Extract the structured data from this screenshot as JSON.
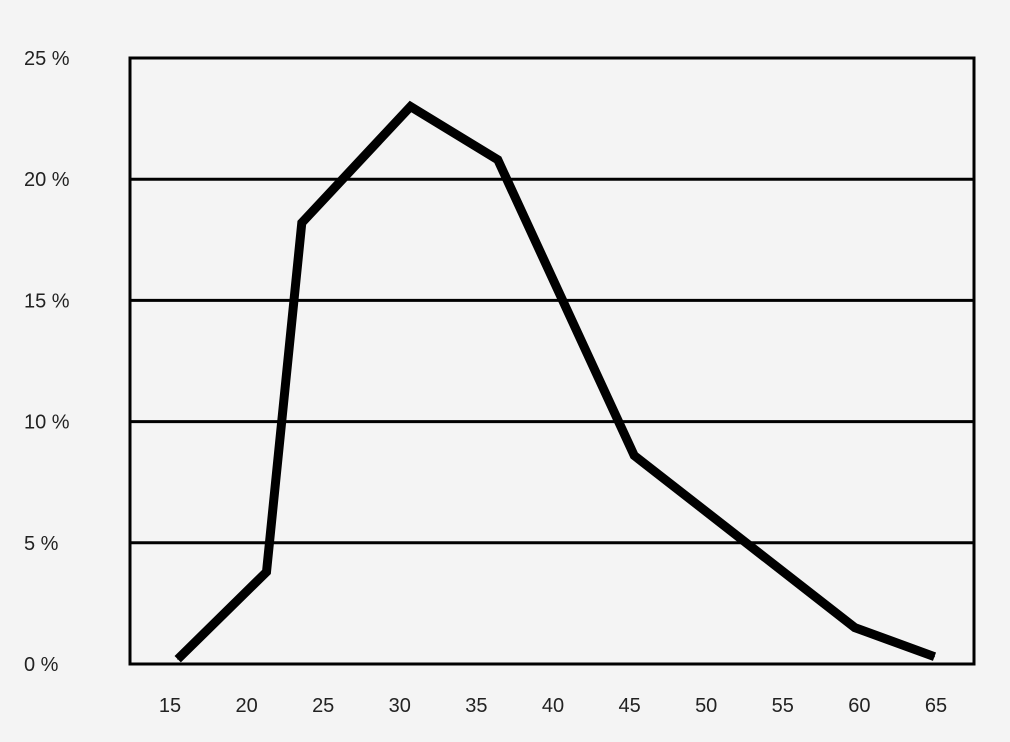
{
  "chart_data": {
    "type": "line",
    "title": "",
    "xlabel": "",
    "ylabel": "",
    "x_ticks": [
      "15",
      "20",
      "25",
      "30",
      "35",
      "40",
      "45",
      "50",
      "55",
      "60",
      "65"
    ],
    "y_ticks": [
      "0 %",
      "5 %",
      "10 %",
      "15 %",
      "20 %",
      "25 %"
    ],
    "xlim": [
      15,
      65
    ],
    "ylim": [
      0,
      25
    ],
    "grid": "horizontal",
    "series": [
      {
        "x": [
          15.5,
          21.3,
          23.6,
          30.7,
          36.4,
          45.3,
          59.7,
          64.9
        ],
        "y": [
          0.2,
          3.8,
          18.2,
          23.0,
          20.8,
          8.6,
          1.5,
          0.3
        ],
        "color": "#000000"
      }
    ]
  },
  "colors": {
    "background": "#f4f4f4",
    "line": "#000000",
    "grid": "#000000"
  }
}
